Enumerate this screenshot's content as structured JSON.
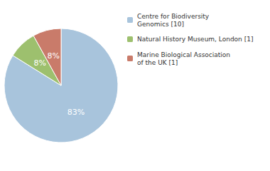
{
  "chart_data": {
    "type": "pie",
    "categories": [
      "Centre for Biodiversity\nGenomics [10]",
      "Natural History Museum, London [1]",
      "Marine Biological Association\nof the UK [1]"
    ],
    "values": [
      83,
      8,
      8
    ],
    "value_labels": [
      "83%",
      "8%",
      "8%"
    ],
    "colors": [
      "#a8c4dc",
      "#9dc06e",
      "#c97b6a"
    ],
    "data_labels": true,
    "legend": "right"
  }
}
